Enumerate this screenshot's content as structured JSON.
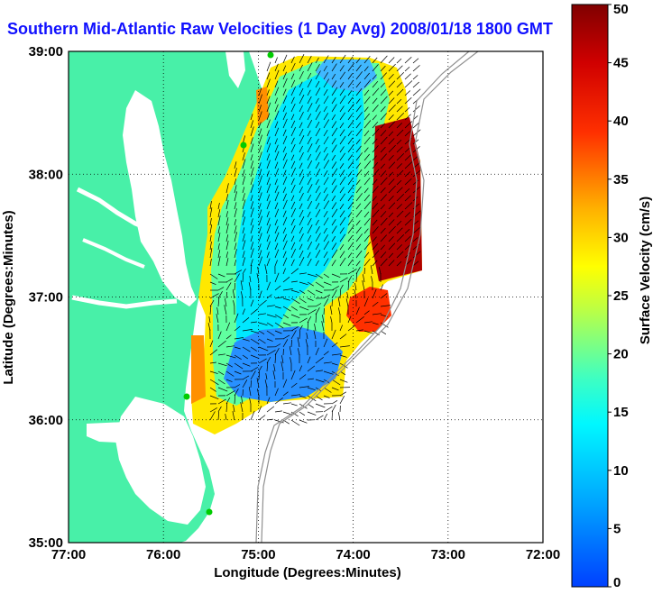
{
  "title": "Southern Mid-Atlantic Raw Velocities (1 Day Avg) 2008/01/18 1800 GMT",
  "x_axis": {
    "label": "Longitude (Degrees:Minutes)",
    "ticks": [
      "77:00",
      "76:00",
      "75:00",
      "74:00",
      "73:00",
      "72:00"
    ]
  },
  "y_axis": {
    "label": "Latitude (Degrees:Minutes)",
    "ticks": [
      "39:00",
      "38:00",
      "37:00",
      "36:00",
      "35:00"
    ]
  },
  "colorbar": {
    "label": "Surface Velocity (cm/s)",
    "ticks": [
      "50",
      "45",
      "40",
      "35",
      "30",
      "25",
      "20",
      "15",
      "10",
      "5",
      "0"
    ],
    "range": [
      0,
      50
    ]
  },
  "colors": {
    "land": "#48f0a8",
    "title": "#1010ff",
    "stations": "#00cc00"
  },
  "map": {
    "lon_range": [
      -77,
      -72
    ],
    "lat_range": [
      35,
      39
    ],
    "grid": true
  }
}
